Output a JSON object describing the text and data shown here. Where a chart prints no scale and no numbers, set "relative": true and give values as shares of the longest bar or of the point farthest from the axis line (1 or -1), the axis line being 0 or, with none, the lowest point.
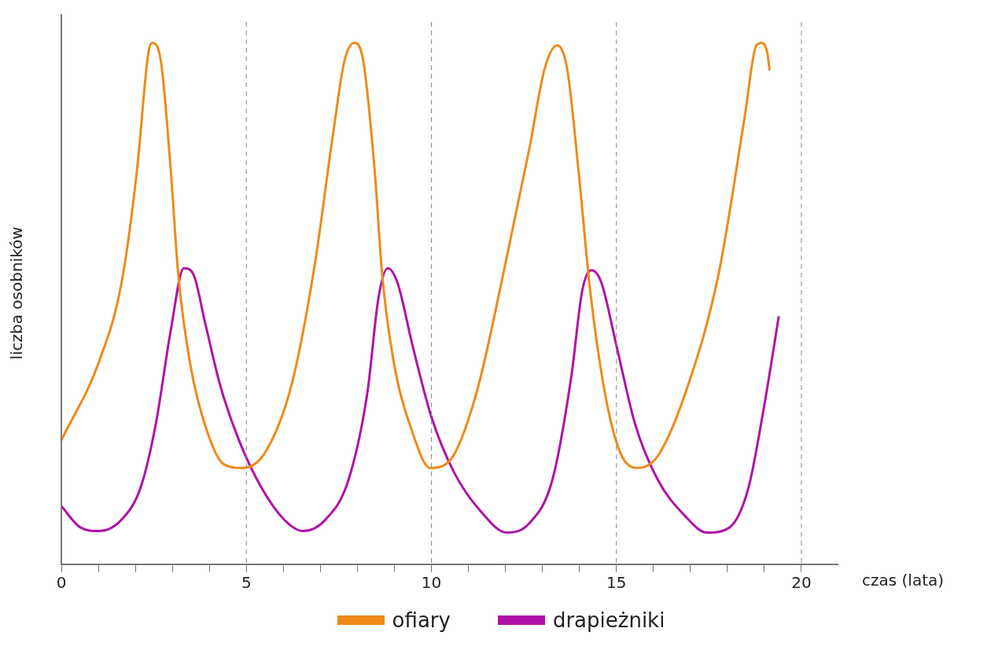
{
  "chart_data": {
    "type": "line",
    "relative": true,
    "xlabel": "czas (lata)",
    "ylabel": "liczba osobników",
    "xlim": [
      0,
      21
    ],
    "xticks": [
      0,
      {
        "value": 1,
        "label": null
      },
      {
        "value": 2,
        "label": null
      },
      {
        "value": 3,
        "label": null
      },
      {
        "value": 4,
        "label": null
      },
      5,
      {
        "value": 6,
        "label": null
      },
      {
        "value": 7,
        "label": null
      },
      {
        "value": 8,
        "label": null
      },
      {
        "value": 9,
        "label": null
      },
      10,
      {
        "value": 11,
        "label": null
      },
      {
        "value": 12,
        "label": null
      },
      {
        "value": 13,
        "label": null
      },
      {
        "value": 14,
        "label": null
      },
      15,
      {
        "value": 16,
        "label": null
      },
      {
        "value": 17,
        "label": null
      },
      {
        "value": 18,
        "label": null
      },
      {
        "value": 19,
        "label": null
      },
      20
    ],
    "ref_lines": [
      {
        "axis": "x",
        "value": 5,
        "color": "#888888",
        "line_style": "dashed"
      },
      {
        "axis": "x",
        "value": 10,
        "color": "#888888",
        "line_style": "dashed"
      },
      {
        "axis": "x",
        "value": 15,
        "color": "#888888",
        "line_style": "dashed"
      },
      {
        "axis": "x",
        "value": 20,
        "color": "#888888",
        "line_style": "dashed"
      }
    ],
    "legend": "bottom",
    "marker": "none",
    "line_style": "solid",
    "grid": false,
    "series": [
      {
        "name": "ofiary",
        "color": "#ee8a1a",
        "x": [
          0,
          1.02,
          1.63,
          2.04,
          2.35,
          2.45,
          2.69,
          2.96,
          3.16,
          3.47,
          3.88,
          4.39,
          4.9,
          5.51,
          6.22,
          6.84,
          7.35,
          7.65,
          7.92,
          8.16,
          8.47,
          8.67,
          8.98,
          9.49,
          9.96,
          10.51,
          11.22,
          11.94,
          12.65,
          13.06,
          13.4,
          13.67,
          13.98,
          14.29,
          14.69,
          15.1,
          15.57,
          16.12,
          16.94,
          17.76,
          18.47,
          18.78,
          18.94,
          19.08,
          19.14
        ],
        "values": [
          0.238,
          0.389,
          0.541,
          0.753,
          0.98,
          1.0,
          0.965,
          0.753,
          0.556,
          0.389,
          0.268,
          0.192,
          0.185,
          0.215,
          0.344,
          0.571,
          0.829,
          0.965,
          1.0,
          0.965,
          0.753,
          0.556,
          0.389,
          0.253,
          0.185,
          0.2,
          0.329,
          0.556,
          0.798,
          0.95,
          0.995,
          0.95,
          0.753,
          0.526,
          0.329,
          0.215,
          0.185,
          0.208,
          0.344,
          0.556,
          0.859,
          0.995,
          1.0,
          0.98,
          0.947
        ]
      },
      {
        "name": "drapieżniki",
        "color": "#b012a8",
        "x": [
          0,
          0.51,
          1.02,
          1.63,
          2.14,
          2.55,
          2.96,
          3.31,
          3.57,
          3.88,
          4.29,
          4.8,
          5.41,
          6.02,
          6.53,
          7.14,
          7.76,
          8.27,
          8.57,
          8.82,
          9.08,
          9.49,
          10.0,
          10.61,
          11.33,
          12.04,
          12.65,
          13.27,
          13.78,
          14.08,
          14.33,
          14.59,
          15.0,
          15.51,
          16.12,
          16.84,
          17.45,
          18.06,
          18.57,
          18.98,
          19.39
        ],
        "values": [
          0.112,
          0.071,
          0.064,
          0.086,
          0.147,
          0.268,
          0.45,
          0.568,
          0.556,
          0.465,
          0.344,
          0.238,
          0.147,
          0.086,
          0.064,
          0.086,
          0.162,
          0.329,
          0.511,
          0.568,
          0.541,
          0.42,
          0.283,
          0.177,
          0.102,
          0.061,
          0.079,
          0.162,
          0.359,
          0.526,
          0.564,
          0.541,
          0.42,
          0.268,
          0.162,
          0.094,
          0.061,
          0.071,
          0.147,
          0.298,
          0.476
        ]
      }
    ]
  }
}
